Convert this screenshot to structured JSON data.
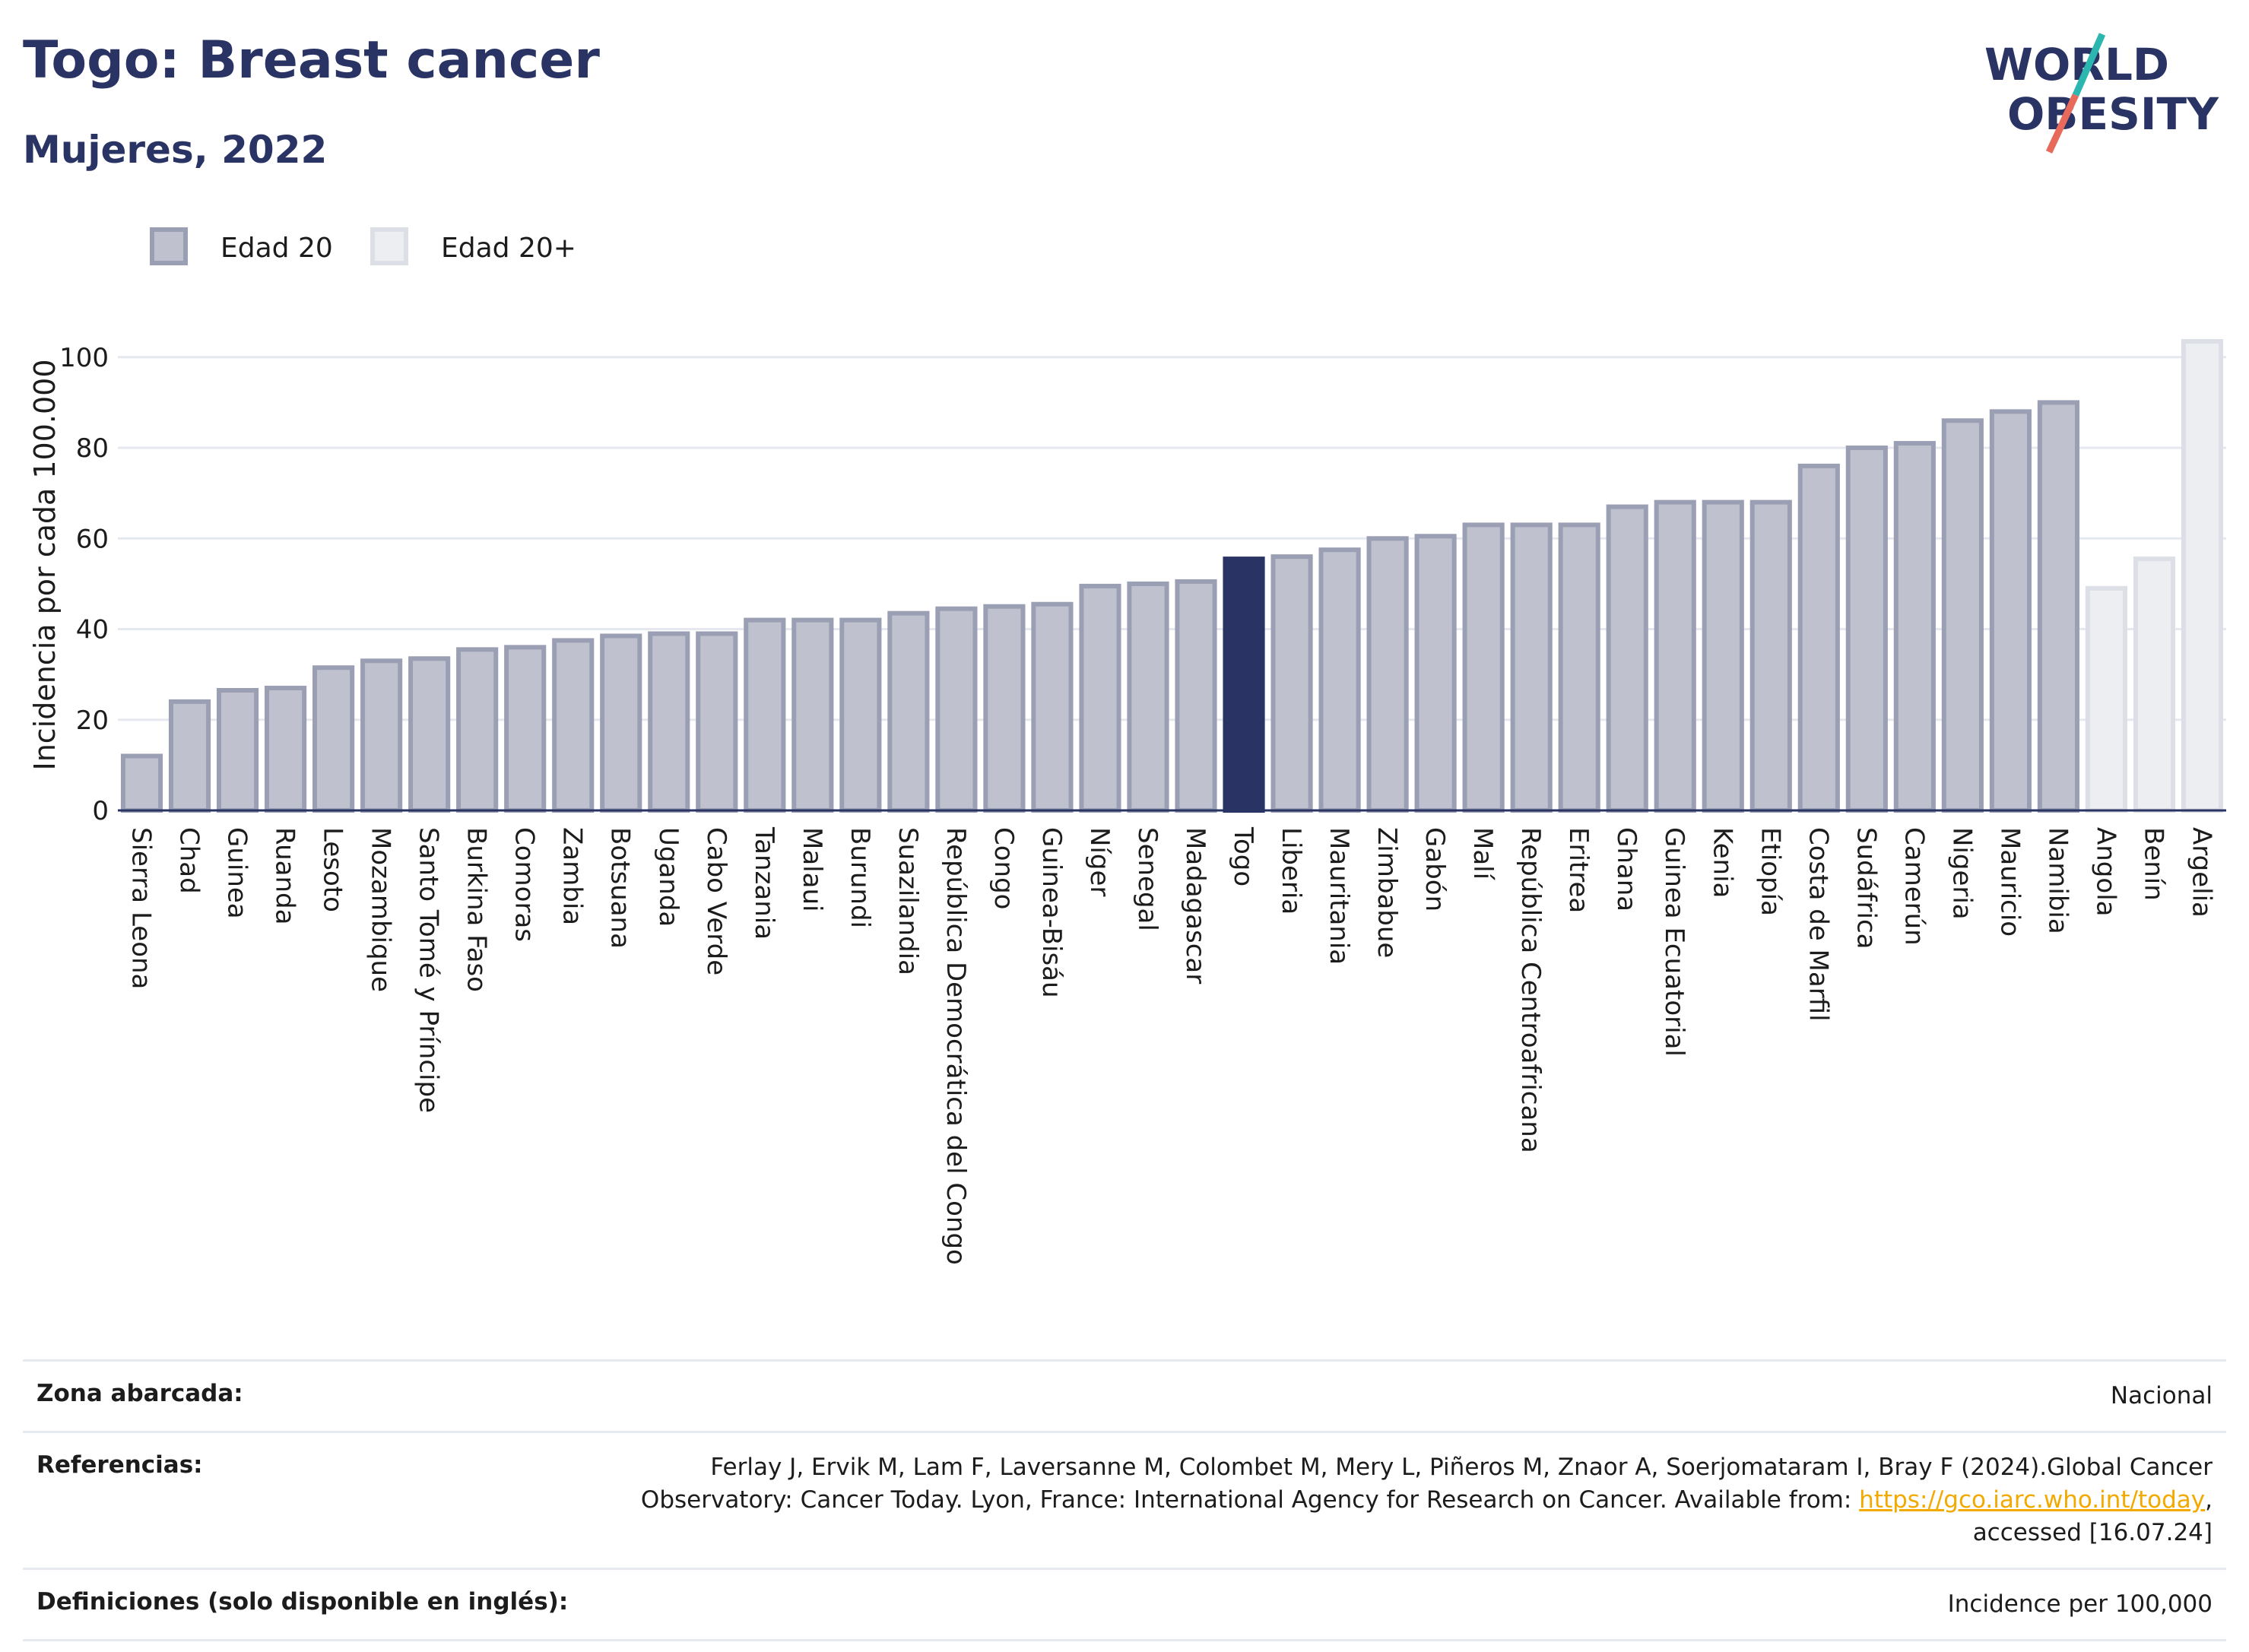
{
  "header": {
    "title": "Togo: Breast cancer",
    "subtitle": "Mujeres, 2022",
    "logo_line1": "WORLD",
    "logo_line2": "OBESITY"
  },
  "colors": {
    "edad20_fill": "#bfc2ce",
    "edad20_stroke": "#9a9fb4",
    "highlight": "#2a3464",
    "edad20plus_fill": "#eceef2",
    "edad20plus_stroke": "#dcdfe6"
  },
  "chart_data": {
    "type": "bar",
    "ylabel": "Incidencia por cada 100.000",
    "xlabel": "",
    "ylim": [
      0,
      105
    ],
    "yticks": [
      0,
      20,
      40,
      60,
      80,
      100
    ],
    "grid": true,
    "legend_position": "top-left",
    "legend": [
      {
        "name": "Edad 20",
        "key": "edad20"
      },
      {
        "name": "Edad 20+",
        "key": "edad20plus"
      }
    ],
    "highlight": "Togo",
    "categories": [
      "Sierra Leona",
      "Chad",
      "Guinea",
      "Ruanda",
      "Lesoto",
      "Mozambique",
      "Santo Tomé y Príncipe",
      "Burkina Faso",
      "Comoras",
      "Zambia",
      "Botsuana",
      "Uganda",
      "Cabo Verde",
      "Tanzania",
      "Malaui",
      "Burundi",
      "Suazilandia",
      "República Democrática del Congo",
      "Congo",
      "Guinea-Bisáu",
      "Níger",
      "Senegal",
      "Madagascar",
      "Togo",
      "Liberia",
      "Mauritania",
      "Zimbabue",
      "Gabón",
      "Malí",
      "República Centroafricana",
      "Eritrea",
      "Ghana",
      "Guinea Ecuatorial",
      "Kenia",
      "Etiopía",
      "Costa de Marfil",
      "Sudáfrica",
      "Camerún",
      "Nigeria",
      "Mauricio",
      "Namibia",
      "Angola",
      "Benín",
      "Argelia"
    ],
    "values": [
      12,
      24,
      26.5,
      27,
      31.5,
      33,
      33.5,
      35.5,
      36,
      37.5,
      38.5,
      39,
      39,
      42,
      42,
      42,
      43.5,
      44.5,
      45,
      45.5,
      49.5,
      50,
      50.5,
      55.5,
      56,
      57.5,
      60,
      60.5,
      63,
      63,
      63,
      67,
      68,
      68,
      68,
      76,
      80,
      81,
      86,
      88,
      90,
      49,
      55.5,
      103.5
    ],
    "series_key": [
      "edad20",
      "edad20",
      "edad20",
      "edad20",
      "edad20",
      "edad20",
      "edad20",
      "edad20",
      "edad20",
      "edad20",
      "edad20",
      "edad20",
      "edad20",
      "edad20",
      "edad20",
      "edad20",
      "edad20",
      "edad20",
      "edad20",
      "edad20",
      "edad20",
      "edad20",
      "edad20",
      "edad20",
      "edad20",
      "edad20",
      "edad20",
      "edad20",
      "edad20",
      "edad20",
      "edad20",
      "edad20",
      "edad20",
      "edad20",
      "edad20",
      "edad20",
      "edad20",
      "edad20",
      "edad20",
      "edad20",
      "edad20",
      "edad20plus",
      "edad20plus",
      "edad20plus"
    ]
  },
  "footer": {
    "rows": [
      {
        "label": "Zona abarcada:",
        "value": "Nacional"
      },
      {
        "label": "Referencias:",
        "value_pre": "Ferlay J, Ervik M, Lam F, Laversanne M, Colombet M, Mery L, Piñeros M, Znaor A, Soerjomataram I, Bray F (2024).Global Cancer Observatory: Cancer Today. Lyon, France: International Agency for Research on Cancer. Available from: ",
        "link": "https://gco.iarc.who.int/today",
        "value_post": ", accessed [16.07.24]"
      },
      {
        "label": "Definiciones (solo disponible en inglés):",
        "value": "Incidence per 100,000"
      }
    ]
  }
}
